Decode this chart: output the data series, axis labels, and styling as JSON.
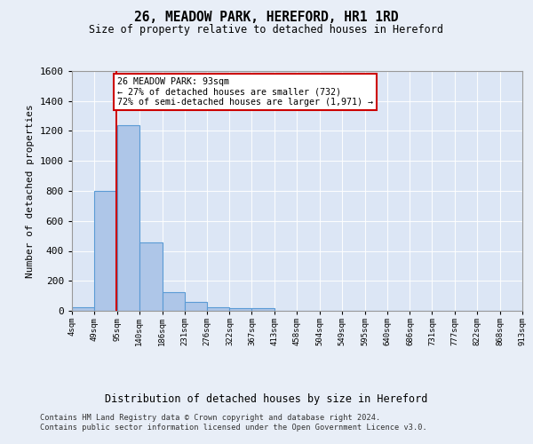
{
  "title": "26, MEADOW PARK, HEREFORD, HR1 1RD",
  "subtitle": "Size of property relative to detached houses in Hereford",
  "xlabel": "Distribution of detached houses by size in Hereford",
  "ylabel": "Number of detached properties",
  "property_label": "26 MEADOW PARK: 93sqm",
  "annotation_line1": "← 27% of detached houses are smaller (732)",
  "annotation_line2": "72% of semi-detached houses are larger (1,971) →",
  "bin_edges": [
    4,
    49,
    95,
    140,
    186,
    231,
    276,
    322,
    367,
    413,
    458,
    504,
    549,
    595,
    640,
    686,
    731,
    777,
    822,
    868,
    913
  ],
  "bar_heights": [
    25,
    800,
    1240,
    455,
    125,
    58,
    25,
    18,
    15,
    0,
    0,
    0,
    0,
    0,
    0,
    0,
    0,
    0,
    0,
    0
  ],
  "bar_color": "#aec6e8",
  "bar_edge_color": "#5b9bd5",
  "vline_color": "#cc0000",
  "vline_x": 93,
  "annotation_box_color": "#cc0000",
  "background_color": "#e8eef7",
  "plot_bg_color": "#dce6f5",
  "ylim": [
    0,
    1600
  ],
  "yticks": [
    0,
    200,
    400,
    600,
    800,
    1000,
    1200,
    1400,
    1600
  ],
  "tick_labels": [
    "4sqm",
    "49sqm",
    "95sqm",
    "140sqm",
    "186sqm",
    "231sqm",
    "276sqm",
    "322sqm",
    "367sqm",
    "413sqm",
    "458sqm",
    "504sqm",
    "549sqm",
    "595sqm",
    "640sqm",
    "686sqm",
    "731sqm",
    "777sqm",
    "822sqm",
    "868sqm",
    "913sqm"
  ],
  "footer_line1": "Contains HM Land Registry data © Crown copyright and database right 2024.",
  "footer_line2": "Contains public sector information licensed under the Open Government Licence v3.0."
}
